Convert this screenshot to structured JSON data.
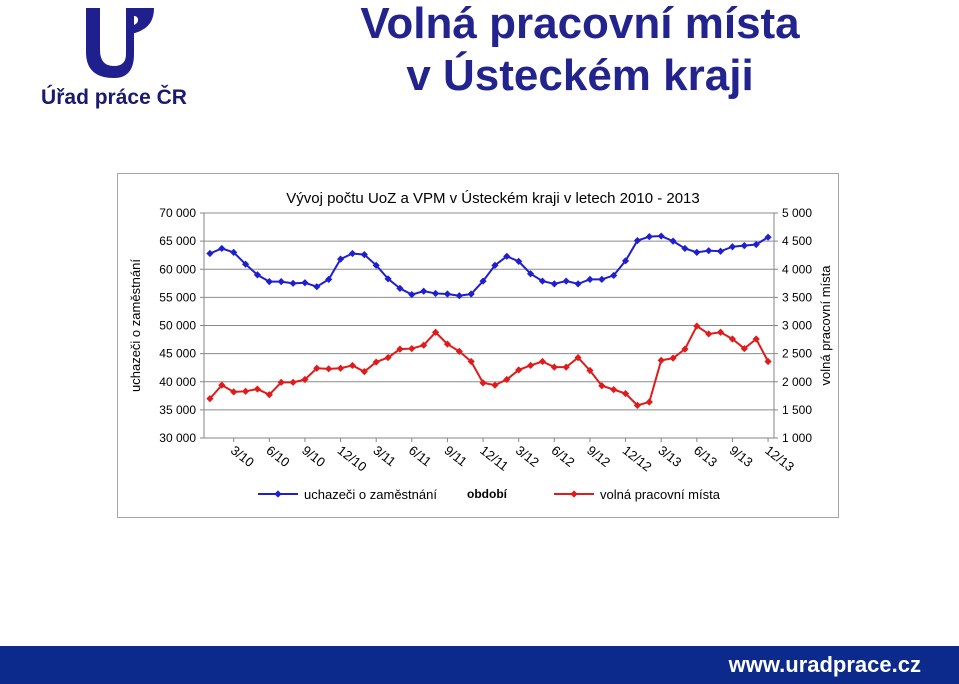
{
  "header": {
    "logo_text": "Úřad práce ČR",
    "title_line1": "Volná pracovní místa",
    "title_line2": "v Ústeckém kraji"
  },
  "colors": {
    "brand": "#23238e",
    "footer": "#0c2a8c",
    "series_uchazeci": "#1f1fd0",
    "series_vpm": "#e01b1b"
  },
  "footer": {
    "url": "www.uradprace.cz"
  },
  "chart_data": {
    "type": "line",
    "title": "Vývoj počtu UoZ a VPM v Ústeckém kraji v letech 2010 - 2013",
    "xlabel": "období",
    "ylabel": "uchazeči o zaměstnání",
    "y2label": "volná pracovní místa",
    "ylim": [
      30000,
      70000
    ],
    "y2lim": [
      1000,
      5000
    ],
    "y_ticks": [
      "30 000",
      "35 000",
      "40 000",
      "45 000",
      "50 000",
      "55 000",
      "60 000",
      "65 000",
      "70 000"
    ],
    "y2_ticks": [
      "1 000",
      "1 500",
      "2 000",
      "2 500",
      "3 000",
      "3 500",
      "4 000",
      "4 500",
      "5 000"
    ],
    "x_tick_labels": [
      "3/10",
      "6/10",
      "9/10",
      "12/10",
      "3/11",
      "6/11",
      "9/11",
      "12/11",
      "3/12",
      "6/12",
      "9/12",
      "12/12",
      "3/13",
      "6/13",
      "9/13",
      "12/13"
    ],
    "x": [
      "1/10",
      "2/10",
      "3/10",
      "4/10",
      "5/10",
      "6/10",
      "7/10",
      "8/10",
      "9/10",
      "10/10",
      "11/10",
      "12/10",
      "1/11",
      "2/11",
      "3/11",
      "4/11",
      "5/11",
      "6/11",
      "7/11",
      "8/11",
      "9/11",
      "10/11",
      "11/11",
      "12/11",
      "1/12",
      "2/12",
      "3/12",
      "4/12",
      "5/12",
      "6/12",
      "7/12",
      "8/12",
      "9/12",
      "10/12",
      "11/12",
      "12/12",
      "1/13",
      "2/13",
      "3/13",
      "4/13",
      "5/13",
      "6/13",
      "7/13",
      "8/13",
      "9/13",
      "10/13",
      "11/13",
      "12/13"
    ],
    "legend_position": "bottom",
    "grid": true,
    "series": [
      {
        "name": "uchazeči o zaměstnání",
        "axis": "left",
        "color": "#1f1fd0",
        "values": [
          62800,
          63700,
          63000,
          60900,
          59000,
          57800,
          57800,
          57500,
          57600,
          56900,
          58200,
          61800,
          62800,
          62600,
          60700,
          58300,
          56600,
          55500,
          56100,
          55700,
          55600,
          55300,
          55600,
          57900,
          60700,
          62300,
          61400,
          59200,
          57900,
          57400,
          57900,
          57400,
          58200,
          58200,
          58900,
          61500,
          65100,
          65800,
          65900,
          65000,
          63700,
          63000,
          63300,
          63200,
          64000,
          64200,
          64400,
          65700
        ]
      },
      {
        "name": "volná pracovní místa",
        "axis": "right",
        "color": "#e01b1b",
        "values": [
          1700,
          1940,
          1820,
          1830,
          1870,
          1770,
          1990,
          1990,
          2040,
          2240,
          2230,
          2240,
          2290,
          2180,
          2350,
          2430,
          2580,
          2590,
          2650,
          2880,
          2670,
          2540,
          2360,
          1980,
          1940,
          2040,
          2210,
          2290,
          2360,
          2260,
          2260,
          2430,
          2200,
          1930,
          1860,
          1790,
          1580,
          1640,
          2380,
          2420,
          2580,
          2990,
          2850,
          2880,
          2760,
          2590,
          2760,
          2360
        ]
      }
    ]
  }
}
